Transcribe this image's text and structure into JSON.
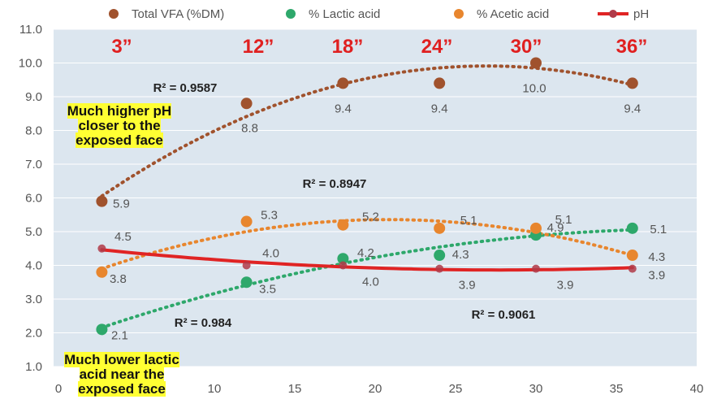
{
  "chart_data": {
    "type": "scatter",
    "xlim": [
      0,
      40
    ],
    "ylim": [
      1.0,
      11.0
    ],
    "x_ticks": [
      "0",
      "10",
      "15",
      "20",
      "25",
      "30",
      "35",
      "40"
    ],
    "y_ticks": [
      "1.0",
      "2.0",
      "3.0",
      "4.0",
      "5.0",
      "6.0",
      "7.0",
      "8.0",
      "9.0",
      "10.0",
      "11.0"
    ],
    "grid": true,
    "legend_position": "top",
    "depth_labels": [
      "3”",
      "12”",
      "18”",
      "24”",
      "30”",
      "36”"
    ],
    "depth_x": [
      3,
      12,
      18,
      24,
      30,
      36
    ],
    "series": [
      {
        "name": "Total VFA (%DM)",
        "color": "#a0522d",
        "marker": "dot",
        "trendline": "dotted",
        "x": [
          3,
          12,
          18,
          24,
          30,
          36
        ],
        "y": [
          5.9,
          8.8,
          9.4,
          9.4,
          10.0,
          9.4
        ],
        "labels": [
          "5.9",
          "8.8",
          "9.4",
          "9.4",
          "10.0",
          "9.4"
        ],
        "r2": "R² = 0.9587"
      },
      {
        "name": "% Lactic acid",
        "color": "#2ea86b",
        "marker": "dot",
        "trendline": "dotted",
        "x": [
          3,
          12,
          18,
          24,
          30,
          36
        ],
        "y": [
          2.1,
          3.5,
          4.2,
          4.3,
          4.9,
          5.1
        ],
        "labels": [
          "2.1",
          "3.5",
          "4.2",
          "4.3",
          "4.9",
          "5.1"
        ],
        "r2": "R² = 0.984"
      },
      {
        "name": "% Acetic acid",
        "color": "#e8862e",
        "marker": "dot",
        "trendline": "dotted",
        "x": [
          3,
          12,
          18,
          24,
          30,
          36
        ],
        "y": [
          3.8,
          5.3,
          5.2,
          5.1,
          5.1,
          4.3
        ],
        "labels": [
          "3.8",
          "5.3",
          "5.2",
          "5.1",
          "5.1",
          "4.3"
        ],
        "r2": "R² = 0.8947"
      },
      {
        "name": "pH",
        "color": "#e02424",
        "marker": "line-dot",
        "trendline": "solid",
        "x": [
          3,
          12,
          18,
          24,
          30,
          36
        ],
        "y": [
          4.5,
          4.0,
          4.0,
          3.9,
          3.9,
          3.9
        ],
        "labels": [
          "4.5",
          "4.0",
          "4.0",
          "3.9",
          "3.9",
          "3.9"
        ],
        "r2": "R² = 0.9061"
      }
    ],
    "annotations": [
      "Much higher pH closer to the exposed face",
      "Much lower lactic acid near the exposed face"
    ]
  },
  "notes": {
    "top": [
      "Much higher pH",
      "closer to the",
      "exposed face"
    ],
    "bottom": [
      "Much lower lactic",
      "acid near the",
      "exposed face"
    ]
  }
}
